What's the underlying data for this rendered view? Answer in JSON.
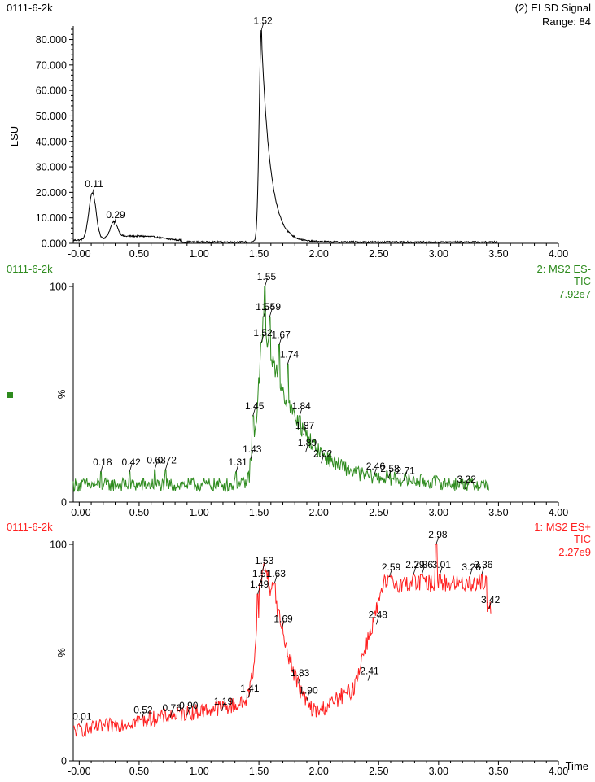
{
  "chart_data": [
    {
      "type": "line",
      "sample_name": "0111-6-2k",
      "header_lines": [
        "(2) ELSD Signal",
        "Range: 84"
      ],
      "ylabel": "LSU",
      "xlabel": "",
      "xlim": [
        -0.05,
        4.0
      ],
      "ylim": [
        0,
        84000
      ],
      "y_ticks": [
        0,
        10000,
        20000,
        30000,
        40000,
        50000,
        60000,
        70000,
        80000
      ],
      "y_tick_labels": [
        "0.000",
        "10.000",
        "20.000",
        "30.000",
        "40.000",
        "50.000",
        "60.000",
        "70.000",
        "80.000"
      ],
      "x_tick_labels": [
        "-0.00",
        "0.50",
        "1.00",
        "1.50",
        "2.00",
        "2.50",
        "3.00",
        "3.50",
        "4.00"
      ],
      "color": "#000000",
      "series": [
        {
          "x": [
            0.11,
            0.29,
            1.52
          ],
          "y": [
            19500,
            7400,
            83500
          ]
        }
      ],
      "peak_labels": [
        {
          "x": 0.11,
          "y": 19500,
          "label": "0.11"
        },
        {
          "x": 0.29,
          "y": 7400,
          "label": "0.29"
        },
        {
          "x": 1.52,
          "y": 83500,
          "label": "1.52"
        }
      ]
    },
    {
      "type": "line",
      "sample_name": "0111-6-2k",
      "header_lines": [
        "2: MS2 ES-",
        "TIC",
        "7.92e7"
      ],
      "ylabel": "%",
      "xlabel": "",
      "xlim": [
        -0.05,
        4.0
      ],
      "ylim": [
        0,
        100
      ],
      "y_ticks": [
        0,
        100
      ],
      "y_tick_labels": [
        "0",
        "100"
      ],
      "x_tick_labels": [
        "-0.00",
        "0.50",
        "1.00",
        "1.50",
        "2.00",
        "2.50",
        "3.00",
        "3.50",
        "4.00"
      ],
      "color": "#2e8b1e",
      "series": [
        {
          "x": [
            0.18,
            0.42,
            0.63,
            0.72,
            1.31,
            1.43,
            1.45,
            1.52,
            1.54,
            1.55,
            1.59,
            1.67,
            1.74,
            1.84,
            1.87,
            1.89,
            2.02,
            2.46,
            2.58,
            2.71,
            3.22
          ],
          "y": [
            14,
            14,
            15,
            15,
            14,
            20,
            40,
            74,
            86,
            100,
            86,
            73,
            64,
            40,
            31,
            23,
            18,
            12,
            11,
            10,
            6
          ]
        }
      ],
      "peak_labels": [
        {
          "x": 0.18,
          "y": 14,
          "label": "0.18"
        },
        {
          "x": 0.42,
          "y": 14,
          "label": "0.42"
        },
        {
          "x": 0.63,
          "y": 15,
          "label": "0.63"
        },
        {
          "x": 0.72,
          "y": 15,
          "label": "0.72"
        },
        {
          "x": 1.31,
          "y": 14,
          "label": "1.31"
        },
        {
          "x": 1.43,
          "y": 20,
          "label": "1.43"
        },
        {
          "x": 1.45,
          "y": 40,
          "label": "1.45"
        },
        {
          "x": 1.52,
          "y": 74,
          "label": "1.52"
        },
        {
          "x": 1.54,
          "y": 86,
          "label": "1.54"
        },
        {
          "x": 1.55,
          "y": 100,
          "label": "1.55"
        },
        {
          "x": 1.59,
          "y": 86,
          "label": "1.59"
        },
        {
          "x": 1.67,
          "y": 73,
          "label": "1.67"
        },
        {
          "x": 1.74,
          "y": 64,
          "label": "1.74"
        },
        {
          "x": 1.84,
          "y": 40,
          "label": "1.84"
        },
        {
          "x": 1.87,
          "y": 31,
          "label": "1.87"
        },
        {
          "x": 1.89,
          "y": 23,
          "label": "1.89"
        },
        {
          "x": 2.02,
          "y": 18,
          "label": "2.02"
        },
        {
          "x": 2.46,
          "y": 12,
          "label": "2.46"
        },
        {
          "x": 2.58,
          "y": 11,
          "label": "2.58"
        },
        {
          "x": 2.71,
          "y": 10,
          "label": "2.71"
        },
        {
          "x": 3.22,
          "y": 6,
          "label": "3.22"
        }
      ]
    },
    {
      "type": "line",
      "sample_name": "0111-6-2k",
      "header_lines": [
        "1: MS2 ES+",
        "TIC",
        "2.27e9"
      ],
      "ylabel": "%",
      "xlabel": "Time",
      "xlim": [
        -0.05,
        4.0
      ],
      "ylim": [
        0,
        100
      ],
      "y_ticks": [
        0,
        100
      ],
      "y_tick_labels": [
        "0",
        "100"
      ],
      "x_tick_labels": [
        "-0.00",
        "0.50",
        "1.00",
        "1.50",
        "2.00",
        "2.50",
        "3.00",
        "3.50",
        "4.00"
      ],
      "color": "#ff2020",
      "series": [
        {
          "x": [
            0.01,
            0.52,
            0.76,
            0.9,
            1.19,
            1.41,
            1.49,
            1.51,
            1.53,
            1.63,
            1.69,
            1.83,
            1.9,
            2.41,
            2.48,
            2.59,
            2.79,
            2.86,
            2.98,
            3.01,
            3.26,
            3.36,
            3.42
          ],
          "y": [
            16,
            19,
            20,
            21,
            23,
            29,
            77,
            82,
            88,
            82,
            61,
            36,
            28,
            37,
            63,
            85,
            86,
            86,
            100,
            86,
            85,
            86,
            70
          ]
        }
      ],
      "peak_labels": [
        {
          "x": 0.01,
          "y": 16,
          "label": "0.01"
        },
        {
          "x": 0.52,
          "y": 19,
          "label": "0.52"
        },
        {
          "x": 0.76,
          "y": 20,
          "label": "0.76"
        },
        {
          "x": 0.9,
          "y": 21,
          "label": "0.90"
        },
        {
          "x": 1.19,
          "y": 23,
          "label": "1.19"
        },
        {
          "x": 1.41,
          "y": 29,
          "label": "1.41"
        },
        {
          "x": 1.49,
          "y": 77,
          "label": "1.49"
        },
        {
          "x": 1.51,
          "y": 82,
          "label": "1.51"
        },
        {
          "x": 1.53,
          "y": 88,
          "label": "1.53"
        },
        {
          "x": 1.63,
          "y": 82,
          "label": "1.63"
        },
        {
          "x": 1.69,
          "y": 61,
          "label": "1.69"
        },
        {
          "x": 1.83,
          "y": 36,
          "label": "1.83"
        },
        {
          "x": 1.9,
          "y": 28,
          "label": "1.90"
        },
        {
          "x": 2.41,
          "y": 37,
          "label": "2.41"
        },
        {
          "x": 2.48,
          "y": 63,
          "label": "2.48"
        },
        {
          "x": 2.59,
          "y": 85,
          "label": "2.59"
        },
        {
          "x": 2.79,
          "y": 86,
          "label": "2.79"
        },
        {
          "x": 2.86,
          "y": 86,
          "label": "2.86"
        },
        {
          "x": 2.98,
          "y": 100,
          "label": "2.98"
        },
        {
          "x": 3.01,
          "y": 86,
          "label": "3.01"
        },
        {
          "x": 3.26,
          "y": 85,
          "label": "3.26"
        },
        {
          "x": 3.36,
          "y": 86,
          "label": "3.36"
        },
        {
          "x": 3.42,
          "y": 70,
          "label": "3.42"
        }
      ]
    }
  ]
}
